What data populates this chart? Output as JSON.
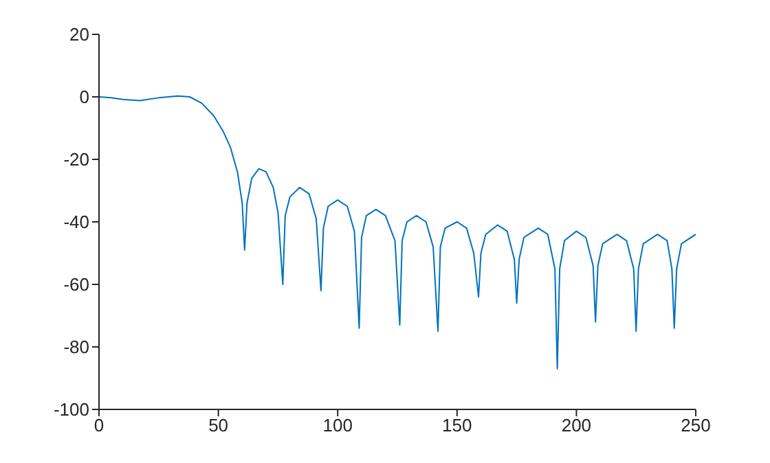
{
  "chart_data": {
    "type": "line",
    "x": [
      0,
      5,
      10,
      17,
      25,
      33,
      38,
      43,
      48,
      52,
      55,
      58,
      60,
      61,
      62,
      64,
      67,
      70,
      73,
      75,
      77,
      78,
      80,
      84,
      88,
      91,
      93,
      94,
      96,
      100,
      104,
      107,
      109,
      110,
      112,
      116,
      120,
      124,
      126,
      127,
      129,
      133,
      137,
      140,
      142,
      143,
      145,
      150,
      154,
      157,
      159,
      160,
      162,
      167,
      171,
      174,
      175,
      176,
      178,
      184,
      188,
      191,
      192,
      193,
      195,
      200,
      204,
      207,
      208,
      209,
      211,
      217,
      221,
      224,
      225,
      226,
      228,
      234,
      238,
      240,
      241,
      242,
      244,
      250
    ],
    "series": [
      {
        "color": "#0072bd",
        "values": [
          0,
          -0.3,
          -0.8,
          -1.2,
          -0.3,
          0.3,
          0,
          -2,
          -6,
          -11,
          -16,
          -24,
          -34,
          -49,
          -34,
          -26,
          -23,
          -24,
          -29,
          -37,
          -60,
          -38,
          -32,
          -29,
          -31,
          -39,
          -62,
          -42,
          -35,
          -33,
          -35,
          -43,
          -74,
          -45,
          -38,
          -36,
          -38,
          -46,
          -73,
          -46,
          -40,
          -38,
          -40,
          -48,
          -75,
          -48,
          -42,
          -40,
          -42,
          -50,
          -64,
          -50,
          -44,
          -41,
          -43,
          -52,
          -66,
          -52,
          -45,
          -42,
          -44,
          -55,
          -87,
          -55,
          -46,
          -43,
          -45,
          -54,
          -72,
          -54,
          -47,
          -44,
          -46,
          -55,
          -75,
          -55,
          -47,
          -44,
          -46,
          -55,
          -74,
          -55,
          -47,
          -44
        ]
      }
    ],
    "xlim": [
      0,
      250
    ],
    "xticks": [
      0,
      50,
      100,
      150,
      200,
      250
    ],
    "ylim": [
      -100,
      20
    ],
    "yticks": [
      -100,
      -80,
      -60,
      -40,
      -20,
      0,
      20
    ],
    "grid": false,
    "legend": false,
    "marker": "none",
    "line_style": "solid"
  }
}
